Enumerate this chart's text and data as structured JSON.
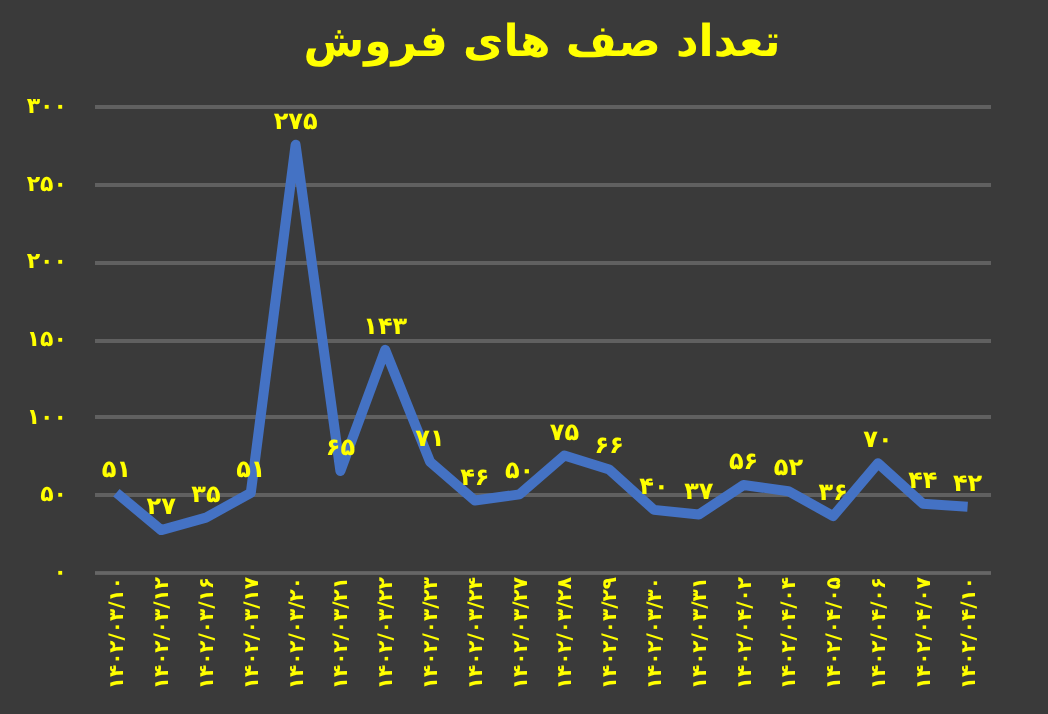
{
  "chart_data": {
    "type": "line",
    "title": "تعداد صف های فروش",
    "categories": [
      "۱۴۰۲/۰۳/۱۰",
      "۱۴۰۲/۰۳/۱۲",
      "۱۴۰۲/۰۳/۱۶",
      "۱۴۰۲/۰۳/۱۷",
      "۱۴۰۲/۰۳/۲۰",
      "۱۴۰۲/۰۳/۲۱",
      "۱۴۰۲/۰۳/۲۲",
      "۱۴۰۲/۰۳/۲۳",
      "۱۴۰۲/۰۳/۲۴",
      "۱۴۰۲/۰۳/۲۷",
      "۱۴۰۲/۰۳/۲۸",
      "۱۴۰۲/۰۳/۲۹",
      "۱۴۰۲/۰۳/۳۰",
      "۱۴۰۲/۰۳/۳۱",
      "۱۴۰۲/۰۴/۰۲",
      "۱۴۰۲/۰۴/۰۴",
      "۱۴۰۲/۰۴/۰۵",
      "۱۴۰۲/۰۴/۰۶",
      "۱۴۰۲/۰۴/۰۷",
      "۱۴۰۲/۰۴/۱۰"
    ],
    "series": [
      {
        "color": "#4472c4",
        "values": [
          51,
          27,
          35,
          51,
          275,
          65,
          143,
          71,
          46,
          50,
          75,
          66,
          40,
          37,
          56,
          52,
          36,
          70,
          44,
          42
        ],
        "value_labels": [
          "۵۱",
          "۲۷",
          "۳۵",
          "۵۱",
          "۲۷۵",
          "۶۵",
          "۱۴۳",
          "۷۱",
          "۴۶",
          "۵۰",
          "۷۵",
          "۶۶",
          "۴۰",
          "۳۷",
          "۵۶",
          "۵۲",
          "۳۶",
          "۷۰",
          "۴۴",
          "۴۲"
        ]
      }
    ],
    "ylim": [
      0,
      300
    ],
    "yticks": [
      {
        "value": 0,
        "label": "۰"
      },
      {
        "value": 50,
        "label": "۵۰"
      },
      {
        "value": 100,
        "label": "۱۰۰"
      },
      {
        "value": 150,
        "label": "۱۵۰"
      },
      {
        "value": 200,
        "label": "۲۰۰"
      },
      {
        "value": 250,
        "label": "۲۵۰"
      },
      {
        "value": 300,
        "label": "۳۰۰"
      }
    ],
    "grid": "y",
    "marker": "none",
    "line_style": "solid",
    "legend": false
  }
}
